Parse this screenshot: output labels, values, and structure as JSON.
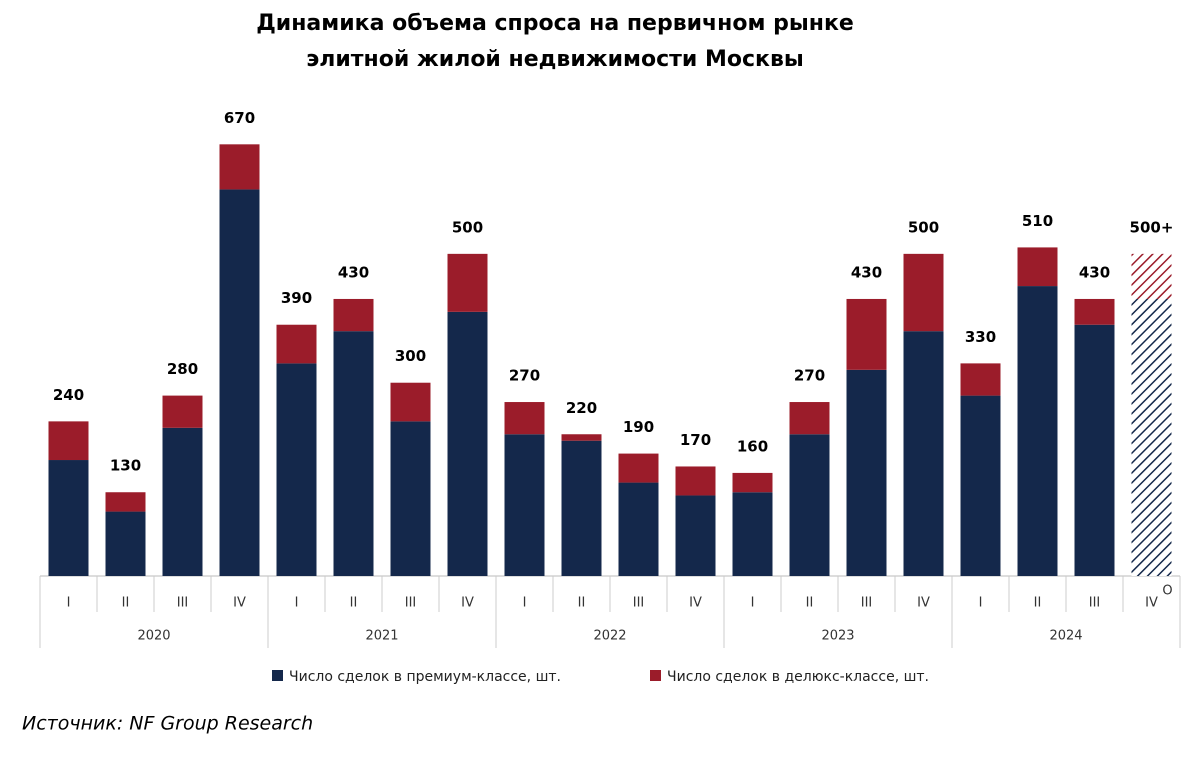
{
  "chart_data": {
    "type": "stacked-bar",
    "title": "Динамика объема спроса на первичном рынке",
    "subtitle": "элитной жилой недвижимости Москвы",
    "categories": [
      "I",
      "II",
      "III",
      "IV",
      "I",
      "II",
      "III",
      "IV",
      "I",
      "II",
      "III",
      "IV",
      "I",
      "II",
      "III",
      "IV",
      "I",
      "II",
      "III",
      "IV"
    ],
    "years": [
      "2020",
      "2021",
      "2022",
      "2023",
      "2024"
    ],
    "forecast_marker": "O",
    "series": [
      {
        "name": "Число сделок в премиум-классе, шт.",
        "color": "#14284b",
        "values": [
          180,
          100,
          230,
          600,
          330,
          380,
          240,
          410,
          220,
          210,
          145,
          125,
          130,
          220,
          320,
          380,
          280,
          450,
          390,
          430
        ]
      },
      {
        "name": "Число сделок в делюкс-классе, шт.",
        "color": "#9b1c2a",
        "values": [
          60,
          30,
          50,
          70,
          60,
          50,
          60,
          90,
          50,
          10,
          45,
          45,
          30,
          50,
          110,
          120,
          50,
          60,
          40,
          70
        ]
      }
    ],
    "totals": [
      240,
      130,
      280,
      670,
      390,
      430,
      300,
      500,
      270,
      220,
      190,
      170,
      160,
      270,
      430,
      500,
      330,
      510,
      430,
      {
        "value": 500,
        "label": "500+"
      }
    ],
    "ylim": [
      0,
      700
    ],
    "source": "Источник: NF Group Research"
  }
}
